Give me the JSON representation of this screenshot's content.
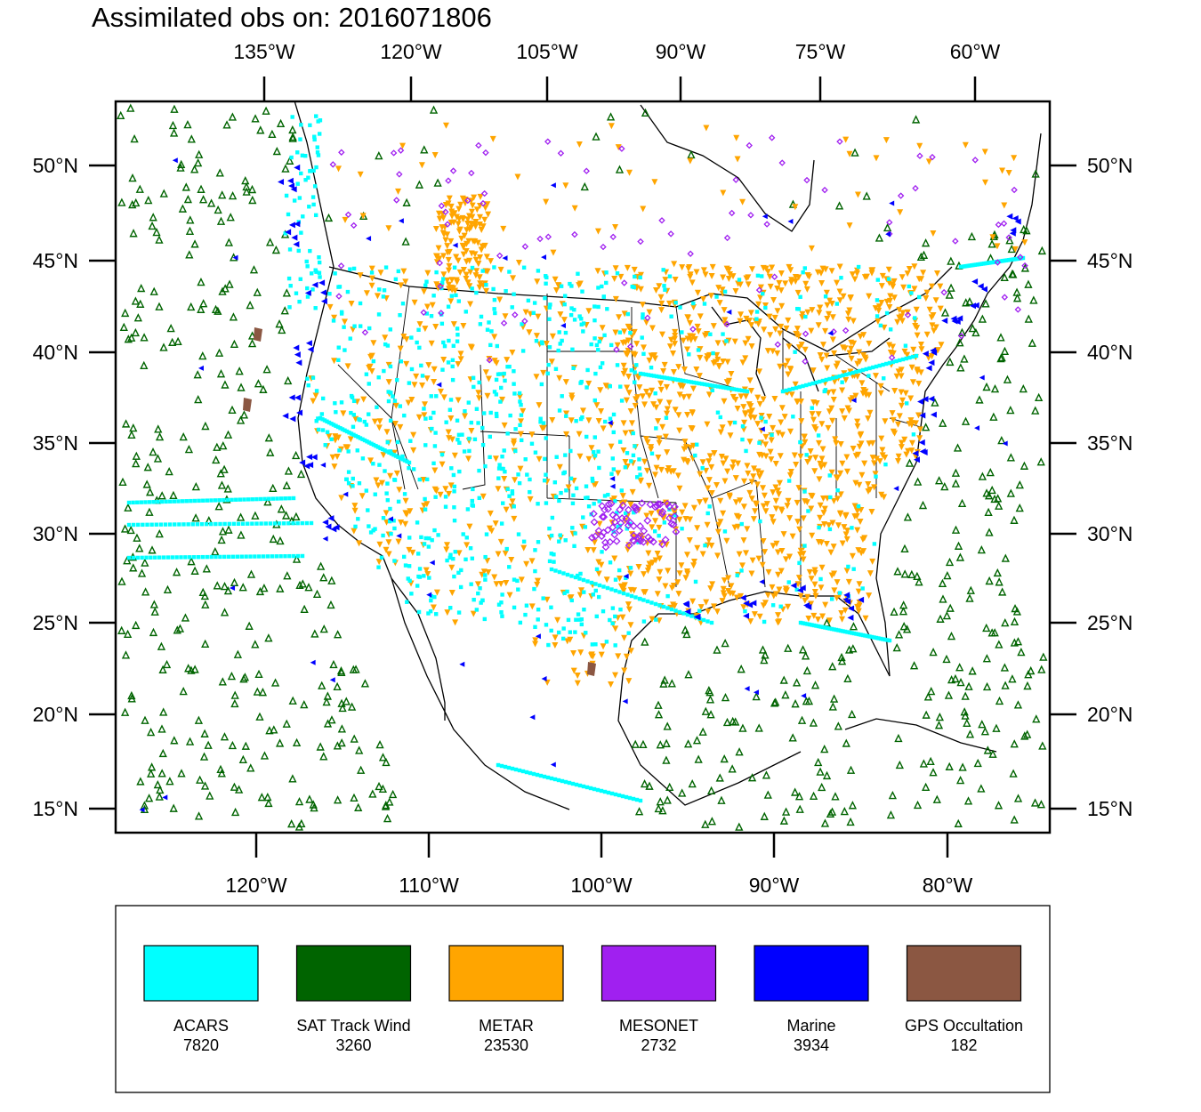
{
  "title": "Assimilated obs on: 2016071806",
  "top_axis_ticks": [
    "135°W",
    "120°W",
    "105°W",
    "90°W",
    "75°W",
    "60°W"
  ],
  "bottom_axis_ticks": [
    "120°W",
    "110°W",
    "100°W",
    "90°W",
    "80°W"
  ],
  "lat_ticks": [
    "50°N",
    "45°N",
    "40°N",
    "35°N",
    "30°N",
    "25°N",
    "20°N",
    "15°N"
  ],
  "lon_range_bottom": [
    -128,
    -74
  ],
  "lat_range": [
    14,
    53
  ],
  "legend": [
    {
      "name": "ACARS",
      "count": "7820",
      "color": "#00FFFF",
      "marker": "square"
    },
    {
      "name": "SAT Track Wind",
      "count": "3260",
      "color": "#006400",
      "marker": "triangle-up"
    },
    {
      "name": "METAR",
      "count": "23530",
      "color": "#FFA500",
      "marker": "triangle-down"
    },
    {
      "name": "MESONET",
      "count": "2732",
      "color": "#A020F0",
      "marker": "diamond"
    },
    {
      "name": "Marine",
      "count": "3934",
      "color": "#0000FF",
      "marker": "triangle-left"
    },
    {
      "name": "GPS Occultation",
      "count": "182",
      "color": "#8B5742",
      "marker": "polygon"
    }
  ]
}
